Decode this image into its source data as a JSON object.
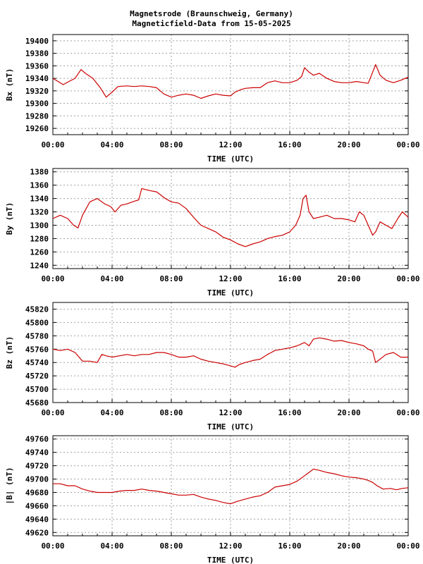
{
  "page": {
    "title_line1": "Magnetsrode (Braunschweig, Germany)",
    "title_line2": "Magneticfield-Data from 15-05-2025"
  },
  "colors": {
    "series": "#cc0000",
    "grid": "#a0a0a0",
    "axis": "#000000"
  },
  "chart_data": [
    {
      "type": "line",
      "xlabel": "TIME (UTC)",
      "ylabel": "Bx (nT)",
      "xlim": [
        0,
        24
      ],
      "ylim": [
        19250,
        19410
      ],
      "yticks": [
        19260,
        19280,
        19300,
        19320,
        19340,
        19360,
        19380,
        19400
      ],
      "xticks": [
        "00:00",
        "04:00",
        "08:00",
        "12:00",
        "16:00",
        "20:00",
        "00:00"
      ],
      "grid": true,
      "series": [
        {
          "x": [
            0,
            0.7,
            1,
            1.5,
            1.9,
            2.2,
            2.7,
            3.2,
            3.6,
            4.0,
            4.4,
            5.0,
            5.5,
            6.0,
            6.5,
            7.0,
            7.5,
            8.0,
            8.5,
            9.0,
            9.5,
            10.0,
            10.5,
            11.0,
            11.5,
            12.0,
            12.3,
            12.7,
            13.0,
            13.5,
            14.0,
            14.5,
            15.0,
            15.5,
            16.0,
            16.5,
            16.8,
            17.0,
            17.3,
            17.6,
            18.0,
            18.5,
            19.0,
            19.5,
            20.0,
            20.5,
            21.0,
            21.3,
            21.6,
            21.8,
            22.1,
            22.5,
            23.0,
            23.5,
            24.0
          ],
          "y": [
            19340,
            19330,
            19334,
            19340,
            19354,
            19348,
            19340,
            19325,
            19310,
            19318,
            19327,
            19328,
            19327,
            19328,
            19327,
            19325,
            19315,
            19310,
            19313,
            19315,
            19313,
            19308,
            19312,
            19315,
            19313,
            19312,
            19318,
            19322,
            19324,
            19325,
            19325,
            19333,
            19336,
            19333,
            19333,
            19337,
            19343,
            19357,
            19350,
            19345,
            19348,
            19340,
            19335,
            19333,
            19333,
            19335,
            19333,
            19332,
            19350,
            19362,
            19345,
            19337,
            19333,
            19337,
            19342
          ]
        }
      ]
    },
    {
      "type": "line",
      "xlabel": "TIME (UTC)",
      "ylabel": "By (nT)",
      "xlim": [
        0,
        24
      ],
      "ylim": [
        1235,
        1385
      ],
      "yticks": [
        1240,
        1260,
        1280,
        1300,
        1320,
        1340,
        1360,
        1380
      ],
      "xticks": [
        "00:00",
        "04:00",
        "08:00",
        "12:00",
        "16:00",
        "20:00",
        "00:00"
      ],
      "grid": true,
      "series": [
        {
          "x": [
            0,
            0.5,
            1.0,
            1.4,
            1.7,
            2.0,
            2.5,
            3.0,
            3.5,
            3.9,
            4.2,
            4.6,
            5.0,
            5.5,
            5.8,
            6.0,
            6.5,
            7.0,
            7.3,
            7.6,
            8.0,
            8.5,
            9.0,
            9.5,
            10.0,
            10.5,
            11.0,
            11.5,
            12.0,
            12.5,
            13.0,
            13.5,
            14.0,
            14.5,
            15.0,
            15.5,
            16.0,
            16.4,
            16.7,
            16.9,
            17.1,
            17.3,
            17.6,
            18.0,
            18.5,
            19.0,
            19.5,
            20.0,
            20.4,
            20.7,
            21.0,
            21.3,
            21.6,
            21.8,
            22.1,
            22.5,
            22.9,
            23.3,
            23.6,
            24.0
          ],
          "y": [
            1310,
            1315,
            1310,
            1300,
            1296,
            1315,
            1335,
            1340,
            1332,
            1328,
            1320,
            1330,
            1332,
            1336,
            1338,
            1355,
            1352,
            1350,
            1345,
            1340,
            1335,
            1333,
            1325,
            1312,
            1300,
            1295,
            1290,
            1282,
            1278,
            1272,
            1268,
            1272,
            1275,
            1280,
            1283,
            1285,
            1290,
            1300,
            1315,
            1340,
            1345,
            1320,
            1310,
            1312,
            1315,
            1310,
            1310,
            1308,
            1305,
            1320,
            1315,
            1300,
            1285,
            1290,
            1305,
            1300,
            1295,
            1310,
            1320,
            1312
          ]
        }
      ]
    },
    {
      "type": "line",
      "xlabel": "TIME (UTC)",
      "ylabel": "Bz (nT)",
      "xlim": [
        0,
        24
      ],
      "ylim": [
        45680,
        45830
      ],
      "yticks": [
        45680,
        45700,
        45720,
        45740,
        45760,
        45780,
        45800,
        45820
      ],
      "xticks": [
        "00:00",
        "04:00",
        "08:00",
        "12:00",
        "16:00",
        "20:00",
        "00:00"
      ],
      "grid": true,
      "series": [
        {
          "x": [
            0,
            0.5,
            1.0,
            1.5,
            2.0,
            2.5,
            3.0,
            3.3,
            3.6,
            4.0,
            4.5,
            5.0,
            5.5,
            6.0,
            6.5,
            7.0,
            7.5,
            8.0,
            8.5,
            9.0,
            9.5,
            10.0,
            10.5,
            11.0,
            11.5,
            12.0,
            12.3,
            12.6,
            13.0,
            13.5,
            14.0,
            14.5,
            15.0,
            15.5,
            16.0,
            16.5,
            17.0,
            17.3,
            17.6,
            18.0,
            18.5,
            19.0,
            19.5,
            20.0,
            20.5,
            21.0,
            21.3,
            21.6,
            21.8,
            22.1,
            22.5,
            23.0,
            23.5,
            24.0
          ],
          "y": [
            45760,
            45758,
            45760,
            45755,
            45742,
            45742,
            45740,
            45752,
            45750,
            45748,
            45750,
            45752,
            45750,
            45752,
            45752,
            45755,
            45755,
            45752,
            45748,
            45748,
            45750,
            45745,
            45742,
            45740,
            45738,
            45735,
            45733,
            45737,
            45740,
            45743,
            45745,
            45752,
            45758,
            45760,
            45762,
            45765,
            45770,
            45765,
            45775,
            45777,
            45775,
            45772,
            45773,
            45770,
            45768,
            45765,
            45760,
            45757,
            45740,
            45745,
            45752,
            45755,
            45748,
            45748
          ]
        }
      ]
    },
    {
      "type": "line",
      "xlabel": "TIME (UTC)",
      "ylabel": "|B| (nT)",
      "xlim": [
        0,
        24
      ],
      "ylim": [
        49615,
        49765
      ],
      "yticks": [
        49620,
        49640,
        49660,
        49680,
        49700,
        49720,
        49740,
        49760
      ],
      "xticks": [
        "00:00",
        "04:00",
        "08:00",
        "12:00",
        "16:00",
        "20:00",
        "00:00"
      ],
      "grid": true,
      "series": [
        {
          "x": [
            0,
            0.5,
            1.0,
            1.5,
            2.0,
            2.5,
            3.0,
            3.5,
            4.0,
            4.5,
            5.0,
            5.5,
            6.0,
            6.5,
            7.0,
            7.5,
            8.0,
            8.5,
            9.0,
            9.5,
            10.0,
            10.5,
            11.0,
            11.5,
            12.0,
            12.5,
            13.0,
            13.5,
            14.0,
            14.5,
            15.0,
            15.5,
            16.0,
            16.5,
            17.0,
            17.3,
            17.6,
            18.0,
            18.5,
            19.0,
            19.5,
            20.0,
            20.5,
            21.0,
            21.3,
            21.6,
            21.9,
            22.3,
            22.8,
            23.2,
            23.6,
            24.0
          ],
          "y": [
            49693,
            49693,
            49690,
            49690,
            49685,
            49682,
            49680,
            49680,
            49680,
            49682,
            49683,
            49683,
            49685,
            49683,
            49682,
            49680,
            49678,
            49676,
            49676,
            49677,
            49673,
            49670,
            49668,
            49665,
            49663,
            49667,
            49670,
            49673,
            49675,
            49680,
            49688,
            49690,
            49692,
            49697,
            49705,
            49710,
            49715,
            49713,
            49710,
            49708,
            49705,
            49703,
            49702,
            49700,
            49698,
            49695,
            49690,
            49685,
            49686,
            49684,
            49686,
            49687
          ]
        }
      ]
    }
  ]
}
